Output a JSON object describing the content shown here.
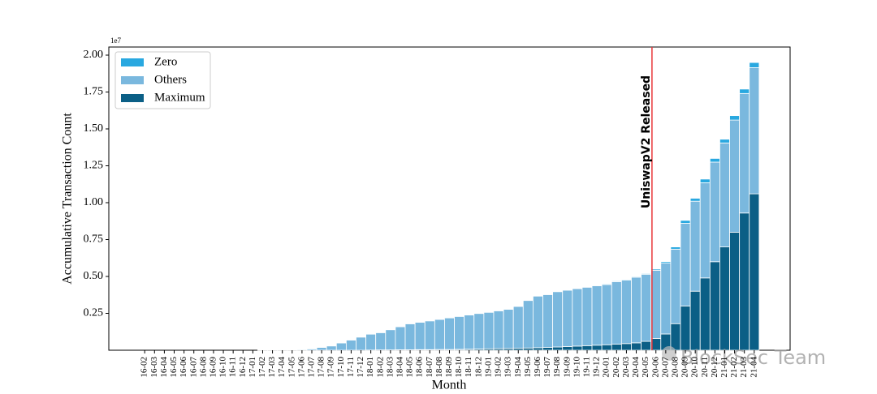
{
  "chart_data": {
    "type": "stacked_bar",
    "ylabel": "Accumulative Transaction Count",
    "xlabel": "Month",
    "y_offset_label": "1e7",
    "categories": [
      "16-02",
      "16-03",
      "16-04",
      "16-05",
      "16-06",
      "16-07",
      "16-08",
      "16-09",
      "16-10",
      "16-11",
      "16-12",
      "17-01",
      "17-02",
      "17-03",
      "17-04",
      "17-05",
      "17-06",
      "17-07",
      "17-08",
      "17-09",
      "17-10",
      "17-11",
      "17-12",
      "18-01",
      "18-02",
      "18-03",
      "18-04",
      "18-05",
      "18-06",
      "18-07",
      "18-08",
      "18-09",
      "18-10",
      "18-11",
      "18-12",
      "19-01",
      "19-02",
      "19-03",
      "19-04",
      "19-05",
      "19-06",
      "19-07",
      "19-08",
      "19-09",
      "19-10",
      "19-11",
      "19-12",
      "20-01",
      "20-02",
      "20-03",
      "20-04",
      "20-05",
      "20-06",
      "20-07",
      "20-08",
      "20-09",
      "20-10",
      "20-11",
      "20-12",
      "21-01",
      "21-02",
      "21-03",
      "21-04"
    ],
    "series": [
      {
        "name": "Zero",
        "color": "#29a8e0",
        "values": [
          0,
          0,
          0,
          0,
          0,
          0,
          0,
          0,
          0,
          0,
          0,
          0,
          0,
          0,
          0,
          0,
          0.001,
          0.001,
          0.001,
          0.001,
          0.001,
          0.001,
          0.001,
          0.001,
          0.001,
          0.001,
          0.001,
          0.001,
          0.001,
          0.001,
          0.001,
          0.001,
          0.001,
          0.001,
          0.001,
          0.003,
          0.003,
          0.003,
          0.003,
          0.003,
          0.003,
          0.003,
          0.003,
          0.003,
          0.003,
          0.003,
          0.003,
          0.005,
          0.005,
          0.005,
          0.005,
          0.005,
          0.008,
          0.01,
          0.015,
          0.02,
          0.02,
          0.025,
          0.025,
          0.025,
          0.03,
          0.03,
          0.035
        ]
      },
      {
        "name": "Others",
        "color": "#7ab8de",
        "values": [
          0,
          0,
          0,
          0,
          0,
          0,
          0,
          0,
          0,
          0,
          0,
          0,
          0.001,
          0.002,
          0.003,
          0.004,
          0.005,
          0.009,
          0.019,
          0.029,
          0.049,
          0.069,
          0.089,
          0.108,
          0.117,
          0.137,
          0.156,
          0.176,
          0.185,
          0.195,
          0.204,
          0.214,
          0.223,
          0.232,
          0.241,
          0.247,
          0.256,
          0.265,
          0.284,
          0.322,
          0.35,
          0.358,
          0.375,
          0.382,
          0.389,
          0.396,
          0.403,
          0.408,
          0.424,
          0.43,
          0.445,
          0.455,
          0.462,
          0.48,
          0.505,
          0.56,
          0.61,
          0.645,
          0.675,
          0.705,
          0.76,
          0.81,
          0.855
        ]
      },
      {
        "name": "Maximum",
        "color": "#0b5f86",
        "values": [
          0,
          0,
          0,
          0,
          0,
          0,
          0,
          0,
          0,
          0,
          0,
          0,
          0,
          0,
          0,
          0,
          0,
          0,
          0,
          0,
          0,
          0,
          0,
          0.001,
          0.002,
          0.002,
          0.003,
          0.003,
          0.004,
          0.004,
          0.005,
          0.005,
          0.006,
          0.007,
          0.008,
          0.01,
          0.011,
          0.012,
          0.013,
          0.015,
          0.017,
          0.019,
          0.022,
          0.025,
          0.028,
          0.031,
          0.034,
          0.037,
          0.041,
          0.045,
          0.05,
          0.06,
          0.08,
          0.11,
          0.18,
          0.3,
          0.4,
          0.49,
          0.6,
          0.7,
          0.8,
          0.93,
          1.06
        ]
      }
    ],
    "ylim": [
      0,
      2.055
    ],
    "yticks": [
      0.25,
      {
        "value": 0.5,
        "label": "0.50"
      },
      0.75,
      {
        "value": 1,
        "label": "1.00"
      },
      1.25,
      {
        "value": 1.5,
        "label": "1.50"
      },
      1.75,
      {
        "value": 2,
        "label": "2.00"
      }
    ],
    "legend": "upper left",
    "annotation": {
      "x": "20-06",
      "text": "UniswapV2 Released",
      "color": "#e8373a"
    },
    "watermark": "BlockSec Team"
  }
}
